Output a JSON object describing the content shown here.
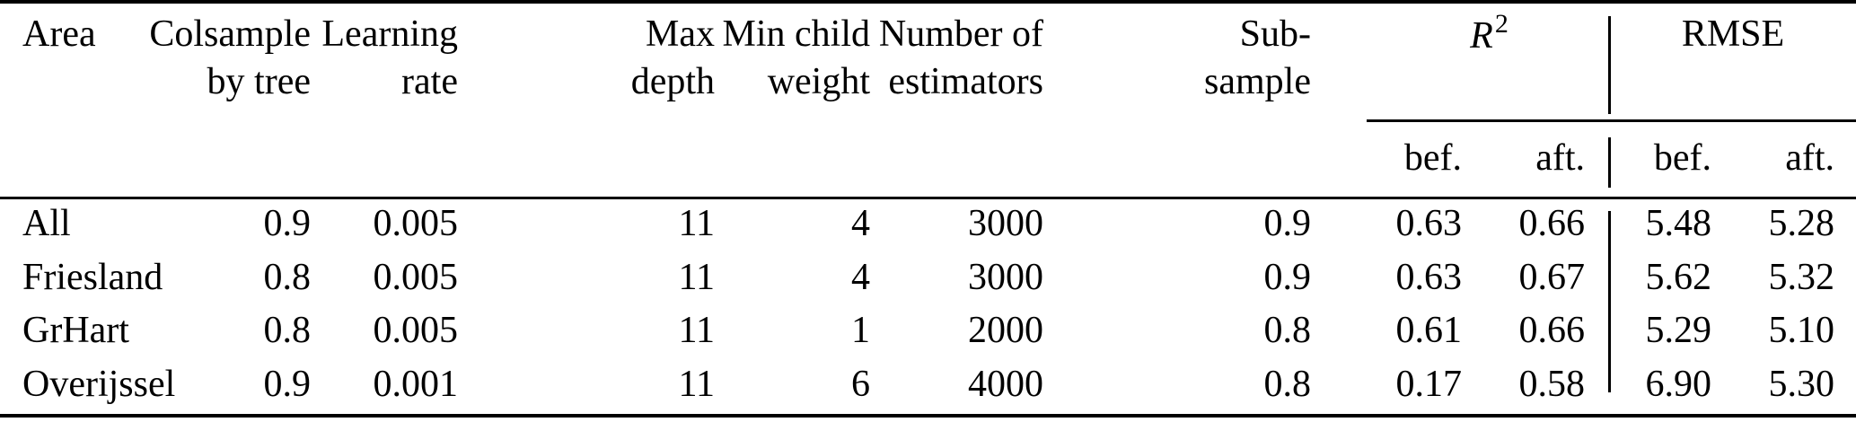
{
  "meta": {
    "background_color": "#ffffff",
    "text_color": "#000000",
    "rule_color": "#000000"
  },
  "table": {
    "column_headers": [
      "Area",
      "Colsample by tree",
      "Learning rate",
      "Max depth",
      "Min child weight",
      "Number of estimators",
      "Sub-sample"
    ],
    "metric_groups": [
      {
        "name": "R2",
        "display_base": "R",
        "display_sup": "2",
        "subcolumns": [
          "bef.",
          "aft."
        ]
      },
      {
        "name": "RMSE",
        "label": "RMSE",
        "subcolumns": [
          "bef.",
          "aft."
        ]
      }
    ],
    "rows": [
      {
        "area": "All",
        "colsample_by_tree": "0.9",
        "learning_rate": "0.005",
        "max_depth": "11",
        "min_child_weight": "4",
        "number_of_estimators": "3000",
        "subsample": "0.9",
        "r2_bef": "0.63",
        "r2_aft": "0.66",
        "rmse_bef": "5.48",
        "rmse_aft": "5.28"
      },
      {
        "area": "Friesland",
        "colsample_by_tree": "0.8",
        "learning_rate": "0.005",
        "max_depth": "11",
        "min_child_weight": "4",
        "number_of_estimators": "3000",
        "subsample": "0.9",
        "r2_bef": "0.63",
        "r2_aft": "0.67",
        "rmse_bef": "5.62",
        "rmse_aft": "5.32"
      },
      {
        "area": "GrHart",
        "colsample_by_tree": "0.8",
        "learning_rate": "0.005",
        "max_depth": "11",
        "min_child_weight": "1",
        "number_of_estimators": "2000",
        "subsample": "0.8",
        "r2_bef": "0.61",
        "r2_aft": "0.66",
        "rmse_bef": "5.29",
        "rmse_aft": "5.10"
      },
      {
        "area": "Overijssel",
        "colsample_by_tree": "0.9",
        "learning_rate": "0.001",
        "max_depth": "11",
        "min_child_weight": "6",
        "number_of_estimators": "4000",
        "subsample": "0.8",
        "r2_bef": "0.17",
        "r2_aft": "0.58",
        "rmse_bef": "6.90",
        "rmse_aft": "5.30"
      }
    ]
  }
}
